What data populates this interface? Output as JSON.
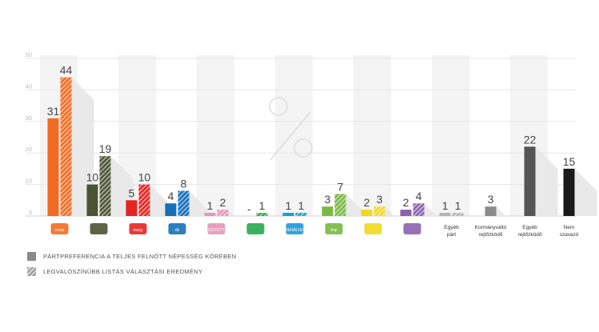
{
  "chart_data": {
    "type": "bar",
    "ylim": [
      0,
      50
    ],
    "yticks": [
      0,
      10,
      20,
      30,
      40,
      50
    ],
    "categories": [
      {
        "id": "mszp-parbeszed",
        "label": "",
        "logo_text": "mszp"
      },
      {
        "id": "fidesz-kdnp",
        "label": "",
        "logo_text": ""
      },
      {
        "id": "mszp",
        "label": "",
        "logo_text": "mszp"
      },
      {
        "id": "dk",
        "label": "",
        "logo_text": "dk"
      },
      {
        "id": "egyutt",
        "label": "",
        "logo_text": "EGYÜTT"
      },
      {
        "id": "parbeszed",
        "label": "",
        "logo_text": ""
      },
      {
        "id": "liberalisok",
        "label": "",
        "logo_text": "LIBERÁLISOK"
      },
      {
        "id": "lmp",
        "label": "",
        "logo_text": "lmp"
      },
      {
        "id": "mkkp",
        "label": "",
        "logo_text": ""
      },
      {
        "id": "momentum",
        "label": "",
        "logo_text": ""
      },
      {
        "id": "egyeb-part",
        "label": "Egyéb párt",
        "logo_text": ""
      },
      {
        "id": "kormanyvalto-rejtozkodo",
        "label": "Kormányváltó rejtőzködő",
        "logo_text": ""
      },
      {
        "id": "egyeb-rejtozkodo",
        "label": "Egyéb rejtőzködő",
        "logo_text": ""
      },
      {
        "id": "nem-szavazo",
        "label": "Nem szavazó",
        "logo_text": ""
      }
    ],
    "series": [
      {
        "name": "PÁRTPREFERENCIA A TELJES FELNŐTT NÉPESSÉG KÖRÉBEN",
        "style": "solid",
        "values": [
          31,
          10,
          5,
          4,
          1,
          null,
          1,
          3,
          2,
          2,
          1,
          3,
          22,
          15
        ],
        "labels": [
          "31",
          "10",
          "5",
          "4",
          "1",
          "-",
          "1",
          "3",
          "2",
          "2",
          "1",
          "3",
          "22",
          "15"
        ]
      },
      {
        "name": "LEGVALÓSZÍNŰBB LISTÁS VÁLASZTÁSI EREDMÉNY",
        "style": "hatched",
        "values": [
          44,
          19,
          10,
          8,
          2,
          1,
          1,
          7,
          3,
          4,
          1,
          null,
          null,
          null
        ],
        "labels": [
          "44",
          "19",
          "10",
          "8",
          "2",
          "1",
          "1",
          "7",
          "3",
          "4",
          "1",
          "",
          "",
          ""
        ]
      }
    ],
    "colors": [
      "#f26a22",
      "#4a5432",
      "#e52321",
      "#1570b8",
      "#e594b8",
      "#27a850",
      "#1a9ad6",
      "#78b943",
      "#f0d81e",
      "#8b62b0",
      "#b4b4b4",
      "#8a8a8a",
      "#555555",
      "#1a1a1a"
    ],
    "grid": true,
    "legend_position": "bottom-left"
  }
}
